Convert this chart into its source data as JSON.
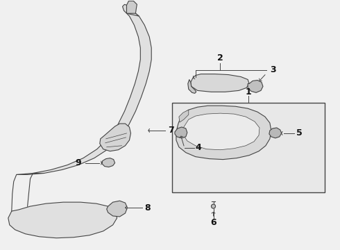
{
  "bg_color": "#f0f0f0",
  "line_color": "#444444",
  "fill_color": "#e0e0e0",
  "fill_light": "#ebebeb",
  "label_color": "#111111",
  "figsize": [
    4.9,
    3.6
  ],
  "dpi": 100
}
